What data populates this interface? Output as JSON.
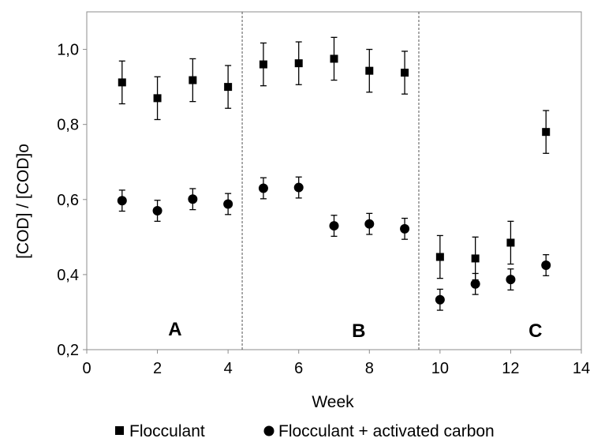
{
  "chart_data": {
    "type": "scatter",
    "title": "",
    "xlabel": "Week",
    "ylabel": "[COD] / [COD]o",
    "xlim": [
      0,
      14
    ],
    "ylim": [
      0.2,
      1.1
    ],
    "x_ticks": [
      0,
      2,
      4,
      6,
      8,
      10,
      12,
      14
    ],
    "y_ticks": [
      0.2,
      0.4,
      0.6,
      0.8,
      1.0
    ],
    "x_tick_labels": [
      "0",
      "2",
      "4",
      "6",
      "8",
      "10",
      "12",
      "14"
    ],
    "y_tick_labels": [
      "0,2",
      "0,4",
      "0,6",
      "0,8",
      "1,0"
    ],
    "grid": false,
    "legend_position": "bottom",
    "series": [
      {
        "name": "Flocculant",
        "marker": "square",
        "color": "#000000",
        "x": [
          1,
          2,
          3,
          4,
          5,
          6,
          7,
          8,
          9,
          10,
          11,
          12,
          13
        ],
        "y": [
          0.912,
          0.87,
          0.918,
          0.9,
          0.96,
          0.963,
          0.975,
          0.943,
          0.938,
          0.447,
          0.443,
          0.485,
          0.78
        ],
        "error": [
          0.057,
          0.057,
          0.057,
          0.057,
          0.057,
          0.057,
          0.057,
          0.057,
          0.057,
          0.057,
          0.057,
          0.057,
          0.057
        ]
      },
      {
        "name": "Flocculant + activated carbon",
        "marker": "circle",
        "color": "#000000",
        "x": [
          1,
          2,
          3,
          4,
          5,
          6,
          7,
          8,
          9,
          10,
          11,
          12,
          13
        ],
        "y": [
          0.597,
          0.57,
          0.601,
          0.588,
          0.63,
          0.632,
          0.53,
          0.535,
          0.522,
          0.333,
          0.375,
          0.387,
          0.425
        ],
        "error": [
          0.028,
          0.028,
          0.028,
          0.028,
          0.028,
          0.028,
          0.028,
          0.028,
          0.028,
          0.028,
          0.028,
          0.028,
          0.028
        ]
      }
    ],
    "dividers_x": [
      4.4,
      9.4
    ],
    "regions": [
      {
        "label": "A",
        "x": 2.5,
        "y": 0.255
      },
      {
        "label": "B",
        "x": 7.7,
        "y": 0.25
      },
      {
        "label": "C",
        "x": 12.7,
        "y": 0.25
      }
    ]
  }
}
